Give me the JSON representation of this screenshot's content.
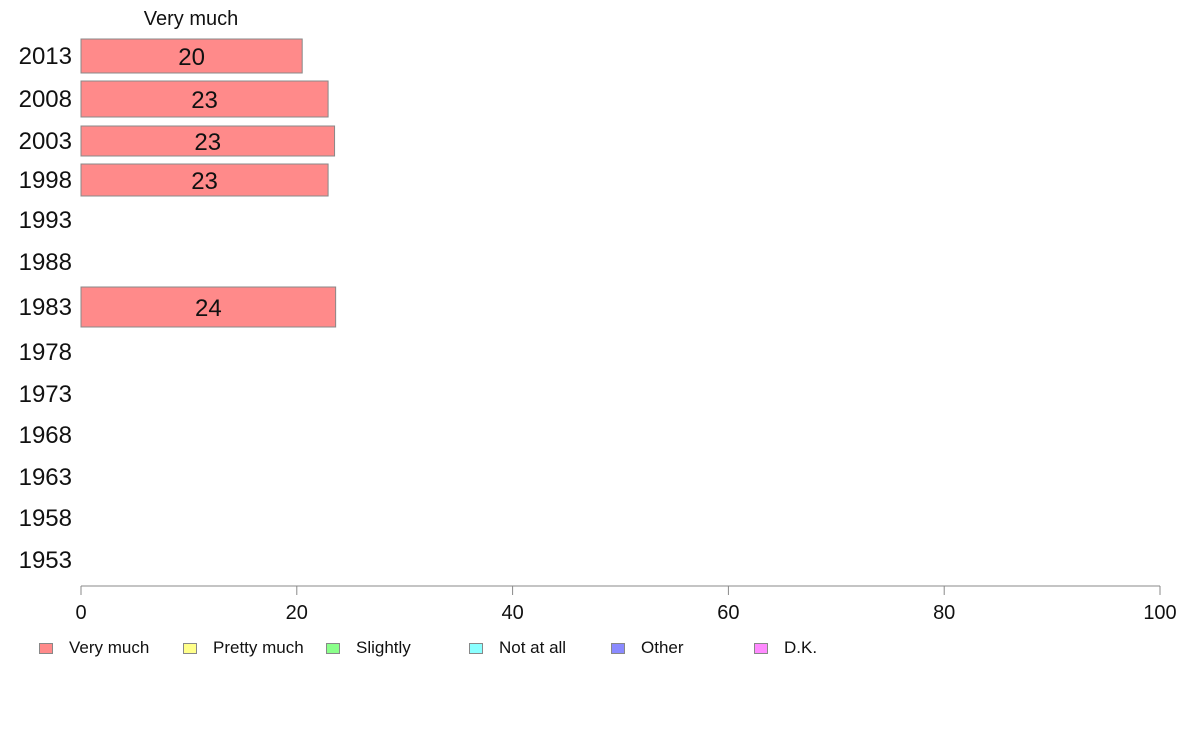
{
  "chart_data": {
    "type": "bar",
    "orientation": "horizontal",
    "stacked": true,
    "categories": [
      "2013",
      "2008",
      "2003",
      "1998",
      "1993",
      "1988",
      "1983",
      "1978",
      "1973",
      "1968",
      "1963",
      "1958",
      "1953"
    ],
    "series": [
      {
        "name": "Very much",
        "color": "#ff8a8a",
        "values": [
          20.5,
          22.9,
          23.5,
          22.9,
          null,
          null,
          23.6,
          null,
          null,
          null,
          null,
          null,
          null
        ],
        "labels": [
          "20",
          "23",
          "23",
          "23",
          "",
          "",
          "24",
          "",
          "",
          "",
          "",
          "",
          ""
        ]
      },
      {
        "name": "Pretty much",
        "color": "#ffff8a",
        "values": [
          null,
          null,
          null,
          null,
          null,
          null,
          null,
          null,
          null,
          null,
          null,
          null,
          null
        ],
        "labels": [
          "",
          "",
          "",
          "",
          "",
          "",
          "",
          "",
          "",
          "",
          "",
          "",
          ""
        ]
      },
      {
        "name": "Slightly",
        "color": "#8aff8a",
        "values": [
          null,
          null,
          null,
          null,
          null,
          null,
          null,
          null,
          null,
          null,
          null,
          null,
          null
        ],
        "labels": [
          "",
          "",
          "",
          "",
          "",
          "",
          "",
          "",
          "",
          "",
          "",
          "",
          ""
        ]
      },
      {
        "name": "Not at all",
        "color": "#8affff",
        "values": [
          null,
          null,
          null,
          null,
          null,
          null,
          null,
          null,
          null,
          null,
          null,
          null,
          null
        ],
        "labels": [
          "",
          "",
          "",
          "",
          "",
          "",
          "",
          "",
          "",
          "",
          "",
          "",
          ""
        ]
      },
      {
        "name": "Other",
        "color": "#8a8aff",
        "values": [
          null,
          null,
          null,
          null,
          null,
          null,
          null,
          null,
          null,
          null,
          null,
          null,
          null
        ],
        "labels": [
          "",
          "",
          "",
          "",
          "",
          "",
          "",
          "",
          "",
          "",
          "",
          "",
          ""
        ]
      },
      {
        "name": "D.K.",
        "color": "#ff8aff",
        "values": [
          null,
          null,
          null,
          null,
          null,
          null,
          null,
          null,
          null,
          null,
          null,
          null,
          null
        ],
        "labels": [
          "",
          "",
          "",
          "",
          "",
          "",
          "",
          "",
          "",
          "",
          "",
          "",
          ""
        ]
      }
    ],
    "column_header": "Very much",
    "xlim": [
      0,
      100
    ],
    "xticks": [
      "0",
      "20",
      "40",
      "60",
      "80",
      "100"
    ],
    "grid": false,
    "legend_position": "bottom"
  }
}
